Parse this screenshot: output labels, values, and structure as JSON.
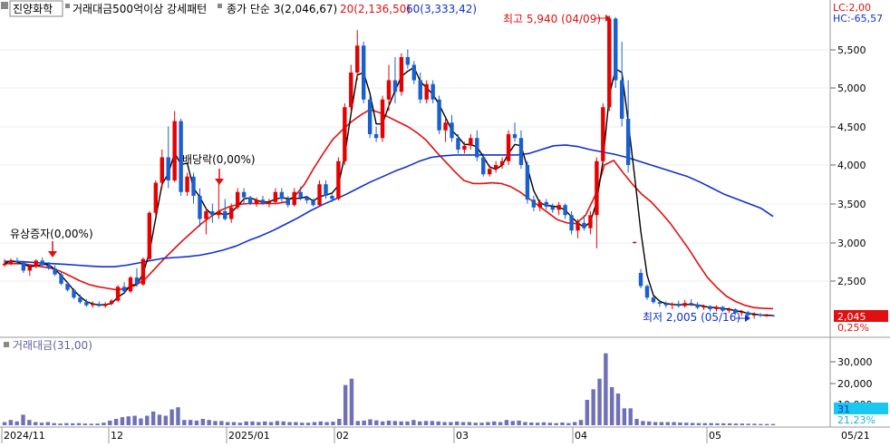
{
  "header": {
    "stock_name": "진양화학",
    "pattern_name": "거래대금500억이상 강세패턴",
    "close_legend": "종가 단순 3(2,046,67)",
    "ma20_legend": "20(2,136,50)",
    "ma60_legend": "60(3,333,42)"
  },
  "corner": {
    "lc": "LC:2,00",
    "hc": "HC:-65,57"
  },
  "price_axis": {
    "ticks": [
      "5,500",
      "5,000",
      "4,500",
      "4,000",
      "3,500",
      "3,000",
      "2,500"
    ],
    "current_price": "2,045",
    "current_pct": "0,25%"
  },
  "annotations": {
    "high": "최고 5,940 (04/09)",
    "low": "최저 2,005 (05/16)",
    "dividend": "배당락(0,00%)",
    "rights": "유상증자(0,00%)"
  },
  "volume_panel": {
    "title": "거래대금(31,00)",
    "ticks": [
      "30,000",
      "20,000",
      "10,000"
    ],
    "current": "31",
    "current_pct": "21,23%"
  },
  "date_axis": {
    "labels": [
      "2024/11",
      "12",
      "2025/01",
      "02",
      "03",
      "04",
      "05",
      "05/21"
    ]
  },
  "colors": {
    "up": "#e60000",
    "down": "#1a5fd0",
    "ma20": "#e01010",
    "ma60": "#1030d0",
    "close_ma": "#000000",
    "volume": "#7070b8"
  },
  "chart_data": [
    {
      "type": "candlestick",
      "title": "진양화학",
      "price_range": [
        2000,
        5950
      ],
      "candles": [
        [
          2700,
          2780,
          2680,
          2720
        ],
        [
          2720,
          2790,
          2700,
          2760
        ],
        [
          2760,
          2800,
          2720,
          2740
        ],
        [
          2740,
          2760,
          2600,
          2630
        ],
        [
          2630,
          2700,
          2560,
          2680
        ],
        [
          2680,
          2780,
          2660,
          2760
        ],
        [
          2760,
          2800,
          2680,
          2700
        ],
        [
          2700,
          2740,
          2640,
          2660
        ],
        [
          2660,
          2700,
          2560,
          2580
        ],
        [
          2580,
          2620,
          2440,
          2460
        ],
        [
          2460,
          2480,
          2360,
          2380
        ],
        [
          2380,
          2400,
          2260,
          2280
        ],
        [
          2280,
          2320,
          2200,
          2220
        ],
        [
          2220,
          2260,
          2160,
          2180
        ],
        [
          2180,
          2230,
          2150,
          2200
        ],
        [
          2200,
          2230,
          2160,
          2170
        ],
        [
          2170,
          2220,
          2150,
          2200
        ],
        [
          2200,
          2260,
          2180,
          2240
        ],
        [
          2240,
          2440,
          2220,
          2420
        ],
        [
          2420,
          2480,
          2340,
          2360
        ],
        [
          2360,
          2560,
          2340,
          2540
        ],
        [
          2540,
          2660,
          2420,
          2450
        ],
        [
          2450,
          2800,
          2430,
          2780
        ],
        [
          2780,
          3400,
          2760,
          3380
        ],
        [
          3380,
          3800,
          3340,
          3770
        ],
        [
          3770,
          4200,
          3700,
          4100
        ],
        [
          4100,
          4500,
          3700,
          3800
        ],
        [
          3800,
          4700,
          3780,
          4570
        ],
        [
          4570,
          4600,
          3600,
          3650
        ],
        [
          3650,
          3900,
          3600,
          3850
        ],
        [
          3850,
          3900,
          3500,
          3600
        ],
        [
          3600,
          3700,
          3200,
          3300
        ],
        [
          3300,
          3450,
          3100,
          3400
        ],
        [
          3400,
          3500,
          3250,
          3350
        ],
        [
          3350,
          3800,
          3300,
          3400
        ],
        [
          3400,
          3560,
          3280,
          3300
        ],
        [
          3300,
          3500,
          3250,
          3450
        ],
        [
          3450,
          3700,
          3420,
          3650
        ],
        [
          3650,
          3700,
          3500,
          3580
        ],
        [
          3580,
          3600,
          3480,
          3500
        ],
        [
          3500,
          3580,
          3460,
          3550
        ],
        [
          3550,
          3600,
          3480,
          3500
        ],
        [
          3500,
          3560,
          3450,
          3520
        ],
        [
          3520,
          3700,
          3500,
          3650
        ],
        [
          3650,
          3700,
          3520,
          3560
        ],
        [
          3560,
          3600,
          3450,
          3480
        ],
        [
          3480,
          3700,
          3460,
          3650
        ],
        [
          3650,
          3720,
          3540,
          3580
        ],
        [
          3580,
          3600,
          3500,
          3540
        ],
        [
          3540,
          3560,
          3460,
          3480
        ],
        [
          3480,
          3800,
          3460,
          3750
        ],
        [
          3750,
          3800,
          3560,
          3600
        ],
        [
          3600,
          3620,
          3520,
          3560
        ],
        [
          3560,
          4100,
          3540,
          4050
        ],
        [
          4050,
          4800,
          4000,
          4750
        ],
        [
          4750,
          5300,
          4700,
          5200
        ],
        [
          5200,
          5750,
          5100,
          5550
        ],
        [
          5550,
          5600,
          4800,
          4850
        ],
        [
          4850,
          4900,
          4350,
          4400
        ],
        [
          4400,
          4500,
          4300,
          4350
        ],
        [
          4350,
          4900,
          4300,
          4850
        ],
        [
          4850,
          5300,
          4700,
          5100
        ],
        [
          5100,
          5400,
          4800,
          4950
        ],
        [
          4950,
          5450,
          4900,
          5400
        ],
        [
          5400,
          5500,
          5250,
          5300
        ],
        [
          5300,
          5350,
          5050,
          5100
        ],
        [
          5100,
          5200,
          4800,
          4850
        ],
        [
          4850,
          5100,
          4800,
          5050
        ],
        [
          5050,
          5100,
          4800,
          4850
        ],
        [
          4850,
          4900,
          4400,
          4450
        ],
        [
          4450,
          4600,
          4300,
          4550
        ],
        [
          4550,
          4650,
          4300,
          4350
        ],
        [
          4350,
          4400,
          4150,
          4200
        ],
        [
          4200,
          4300,
          4150,
          4250
        ],
        [
          4250,
          4400,
          4200,
          4350
        ],
        [
          4350,
          4450,
          4050,
          4100
        ],
        [
          4100,
          4150,
          3850,
          3880
        ],
        [
          3880,
          4000,
          3850,
          3950
        ],
        [
          3950,
          4050,
          3900,
          4000
        ],
        [
          4000,
          4100,
          3950,
          4050
        ],
        [
          4050,
          4450,
          4000,
          4400
        ],
        [
          4400,
          4550,
          4300,
          4350
        ],
        [
          4350,
          4450,
          3950,
          4000
        ],
        [
          4000,
          4050,
          3500,
          3550
        ],
        [
          3550,
          3600,
          3400,
          3450
        ],
        [
          3450,
          3550,
          3400,
          3520
        ],
        [
          3520,
          3560,
          3420,
          3460
        ],
        [
          3460,
          3500,
          3380,
          3420
        ],
        [
          3420,
          3520,
          3350,
          3480
        ],
        [
          3480,
          3500,
          3300,
          3350
        ],
        [
          3350,
          3400,
          3100,
          3150
        ],
        [
          3150,
          3300,
          3050,
          3250
        ],
        [
          3250,
          3350,
          3150,
          3180
        ],
        [
          3180,
          3400,
          3100,
          3350
        ],
        [
          3350,
          4100,
          2920,
          4050
        ],
        [
          4050,
          4800,
          4000,
          4750
        ],
        [
          4750,
          5940,
          4700,
          5900
        ],
        [
          5900,
          5920,
          5000,
          5100
        ],
        [
          5100,
          5600,
          4500,
          4600
        ],
        [
          4600,
          5100,
          3900,
          4000
        ],
        [
          2990,
          3010,
          2980,
          3000
        ],
        [
          2600,
          2650,
          2400,
          2430
        ],
        [
          2430,
          2450,
          2250,
          2280
        ],
        [
          2280,
          2300,
          2200,
          2220
        ],
        [
          2220,
          2250,
          2160,
          2200
        ],
        [
          2200,
          2230,
          2150,
          2180
        ],
        [
          2180,
          2220,
          2130,
          2200
        ],
        [
          2200,
          2240,
          2150,
          2170
        ],
        [
          2170,
          2250,
          2150,
          2210
        ],
        [
          2210,
          2260,
          2170,
          2190
        ],
        [
          2190,
          2220,
          2130,
          2150
        ],
        [
          2150,
          2190,
          2120,
          2170
        ],
        [
          2170,
          2180,
          2100,
          2130
        ],
        [
          2130,
          2180,
          2100,
          2160
        ],
        [
          2160,
          2170,
          2090,
          2110
        ],
        [
          2110,
          2150,
          2080,
          2130
        ],
        [
          2130,
          2140,
          2050,
          2080
        ],
        [
          2080,
          2120,
          2040,
          2090
        ],
        [
          2090,
          2110,
          2020,
          2050
        ],
        [
          2050,
          2090,
          2005,
          2060
        ],
        [
          2060,
          2080,
          2030,
          2045
        ],
        [
          2045,
          2070,
          2030,
          2050
        ],
        [
          2050,
          2060,
          2030,
          2045
        ]
      ]
    },
    {
      "type": "line",
      "series": [
        {
          "name": "20",
          "values": [
            2720,
            2720,
            2720,
            2700,
            2680,
            2660,
            2620,
            2560,
            2500,
            2450,
            2420,
            2400,
            2380,
            2400,
            2440,
            2520,
            2650,
            2780,
            2900,
            3020,
            3130,
            3240,
            3330,
            3410,
            3460,
            3490,
            3500,
            3500,
            3500,
            3500,
            3520,
            3600,
            3750,
            3960,
            4150,
            4330,
            4450,
            4560,
            4650,
            4720,
            4680,
            4620,
            4560,
            4500,
            4420,
            4320,
            4180,
            4050,
            3920,
            3800,
            3760,
            3760,
            3770,
            3760,
            3720,
            3650,
            3560,
            3470,
            3380,
            3290,
            3250,
            3240,
            3350,
            3600,
            4000,
            4060,
            3900,
            3750,
            3620,
            3520,
            3390,
            3250,
            3080,
            2910,
            2720,
            2540,
            2410,
            2300,
            2230,
            2180,
            2150,
            2140,
            2136
          ]
        },
        {
          "name": "60",
          "values": [
            2750,
            2750,
            2740,
            2730,
            2720,
            2710,
            2700,
            2690,
            2680,
            2680,
            2700,
            2730,
            2760,
            2790,
            2800,
            2810,
            2830,
            2860,
            2900,
            2950,
            3020,
            3080,
            3150,
            3230,
            3310,
            3400,
            3480,
            3550,
            3620,
            3700,
            3780,
            3850,
            3920,
            3980,
            4050,
            4100,
            4120,
            4130,
            4130,
            4130,
            4130,
            4130,
            4130,
            4150,
            4200,
            4250,
            4260,
            4240,
            4200,
            4170,
            4140,
            4100,
            4050,
            4000,
            3950,
            3900,
            3850,
            3780,
            3700,
            3620,
            3560,
            3500,
            3440,
            3333
          ]
        }
      ]
    },
    {
      "type": "bar",
      "title": "거래대금(31,00)",
      "ylim": [
        0,
        35000
      ],
      "values": [
        1500,
        2500,
        1800,
        5000,
        2500,
        1500,
        1200,
        1500,
        1000,
        800,
        1000,
        900,
        1000,
        800,
        700,
        800,
        1200,
        2200,
        3000,
        3800,
        4200,
        4500,
        3200,
        4500,
        6500,
        5000,
        4500,
        7500,
        8500,
        2500,
        2500,
        2200,
        3000,
        2500,
        2000,
        2000,
        1500,
        1500,
        1200,
        1800,
        1800,
        1500,
        1800,
        1500,
        2000,
        1800,
        1500,
        1500,
        1200,
        1200,
        1500,
        1800,
        1500,
        1700,
        3000,
        19000,
        22000,
        2000,
        2200,
        2800,
        2300,
        1800,
        2200,
        2000,
        1800,
        1800,
        2500,
        1800,
        2000,
        2000,
        1800,
        1500,
        1500,
        1800,
        1500,
        1500,
        1200,
        1200,
        1500,
        1800,
        1500,
        2500,
        2000,
        2200,
        1500,
        1300,
        1200,
        1400,
        1200,
        1000,
        1300,
        1000,
        1500,
        2500,
        12000,
        17000,
        22000,
        34000,
        18000,
        15000,
        8000,
        8000,
        3000,
        2000,
        1800,
        1500,
        1500,
        1500,
        1500,
        1300,
        1200,
        1100,
        1000,
        1000,
        1000,
        900,
        900,
        900,
        800,
        800,
        700,
        700,
        600,
        600,
        600
      ]
    }
  ]
}
